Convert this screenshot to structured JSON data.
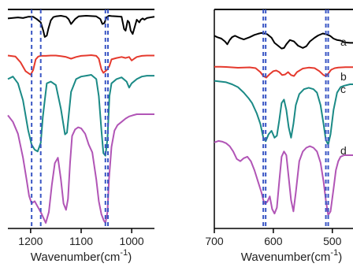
{
  "chart_data": [
    {
      "type": "line",
      "xlabel_text": "Wavenumber(cm",
      "xlabel_exp": "-1",
      "xlabel_close": ")",
      "x_reversed": true,
      "xlim": [
        1245,
        955
      ],
      "xticks": [
        1200,
        1100,
        1000
      ],
      "tick_labels": [
        "1200",
        "1100",
        "1000"
      ],
      "markers": [
        1198,
        1180,
        1052,
        1047
      ],
      "series": [
        {
          "color": "#000000",
          "x": [
            1245,
            1225,
            1215,
            1205,
            1195,
            1188,
            1180,
            1175,
            1172,
            1168,
            1165,
            1160,
            1155,
            1150,
            1140,
            1130,
            1125,
            1120,
            1112,
            1105,
            1098,
            1090,
            1080,
            1070,
            1062,
            1058,
            1054,
            1050,
            1045,
            1040,
            1030,
            1020,
            1015,
            1012,
            1008,
            1005,
            1002,
            998,
            990,
            985,
            982,
            978,
            975,
            970,
            960,
            955
          ],
          "y": [
            0.92,
            0.95,
            0.93,
            0.97,
            0.97,
            0.9,
            0.8,
            0.55,
            0.36,
            0.4,
            0.6,
            0.86,
            0.96,
            0.98,
            1.0,
            0.97,
            0.9,
            0.75,
            0.9,
            0.98,
            0.99,
            1.0,
            0.99,
            0.98,
            0.9,
            0.75,
            0.78,
            0.95,
            1.0,
            0.99,
            0.98,
            0.97,
            0.6,
            0.55,
            0.85,
            0.8,
            0.55,
            0.45,
            0.88,
            0.8,
            0.88,
            0.92,
            0.88,
            0.93,
            0.96,
            0.97
          ]
        },
        {
          "color": "#e53a2e",
          "x": [
            1245,
            1230,
            1220,
            1210,
            1200,
            1195,
            1190,
            1185,
            1180,
            1175,
            1170,
            1160,
            1150,
            1140,
            1130,
            1120,
            1110,
            1100,
            1090,
            1080,
            1070,
            1065,
            1060,
            1056,
            1052,
            1048,
            1044,
            1040,
            1030,
            1020,
            1012,
            1005,
            1000,
            995,
            990,
            980,
            970,
            960,
            955
          ],
          "y": [
            0.99,
            0.96,
            0.8,
            0.55,
            0.45,
            0.58,
            0.88,
            0.96,
            0.98,
            0.98,
            0.98,
            0.99,
            0.99,
            0.97,
            0.95,
            0.9,
            0.95,
            0.98,
            0.99,
            1.0,
            0.98,
            0.9,
            0.6,
            0.5,
            0.55,
            0.6,
            0.7,
            0.88,
            0.92,
            0.95,
            0.92,
            0.95,
            0.85,
            0.9,
            0.95,
            0.98,
            0.99,
            0.99,
            0.99
          ]
        },
        {
          "color": "#1b8a86",
          "x": [
            1245,
            1235,
            1225,
            1215,
            1205,
            1198,
            1192,
            1186,
            1180,
            1176,
            1172,
            1168,
            1160,
            1150,
            1140,
            1132,
            1128,
            1120,
            1110,
            1100,
            1090,
            1080,
            1070,
            1065,
            1060,
            1056,
            1052,
            1048,
            1044,
            1040,
            1030,
            1020,
            1010,
            1005,
            1000,
            990,
            980,
            970,
            960,
            955
          ],
          "y": [
            0.95,
            0.98,
            0.9,
            0.7,
            0.35,
            0.18,
            0.12,
            0.1,
            0.2,
            0.5,
            0.7,
            0.9,
            0.92,
            0.88,
            0.6,
            0.3,
            0.32,
            0.8,
            0.95,
            0.98,
            0.99,
            1.0,
            0.95,
            0.75,
            0.35,
            0.08,
            0.05,
            0.25,
            0.75,
            0.9,
            0.95,
            0.97,
            0.92,
            0.85,
            0.9,
            0.95,
            0.98,
            0.99,
            0.99,
            0.99
          ]
        },
        {
          "color": "#b155b6",
          "x": [
            1245,
            1235,
            1225,
            1215,
            1208,
            1203,
            1198,
            1192,
            1186,
            1180,
            1175,
            1170,
            1164,
            1158,
            1152,
            1146,
            1140,
            1135,
            1130,
            1126,
            1122,
            1118,
            1112,
            1106,
            1100,
            1092,
            1085,
            1078,
            1070,
            1065,
            1060,
            1055,
            1052,
            1048,
            1045,
            1040,
            1034,
            1028,
            1020,
            1012,
            1005,
            998,
            990,
            980,
            970,
            960,
            955
          ],
          "y": [
            0.99,
            0.93,
            0.82,
            0.6,
            0.4,
            0.25,
            0.18,
            0.2,
            0.15,
            0.1,
            0.05,
            0.0,
            0.1,
            0.35,
            0.55,
            0.6,
            0.4,
            0.18,
            0.12,
            0.22,
            0.55,
            0.8,
            0.86,
            0.88,
            0.87,
            0.82,
            0.72,
            0.65,
            0.4,
            0.2,
            0.08,
            0.02,
            0.0,
            0.1,
            0.4,
            0.7,
            0.85,
            0.9,
            0.93,
            0.96,
            0.98,
            0.99,
            1.0,
            1.0,
            1.0,
            1.0,
            1.0
          ]
        }
      ]
    },
    {
      "type": "line",
      "xlabel_text": "Wavenumber(cm",
      "xlabel_exp": "-1",
      "xlabel_close": ")",
      "x_reversed": true,
      "xlim": [
        700,
        465
      ],
      "xticks": [
        700,
        600,
        500
      ],
      "tick_labels": [
        "700",
        "600",
        "500"
      ],
      "markers": [
        617,
        613,
        511,
        507
      ],
      "series": [
        {
          "color": "#000000",
          "label": "a",
          "x": [
            700,
            695,
            688,
            682,
            678,
            674,
            670,
            665,
            658,
            650,
            640,
            632,
            626,
            620,
            615,
            610,
            603,
            598,
            592,
            586,
            582,
            578,
            572,
            565,
            558,
            550,
            544,
            538,
            530,
            524,
            516,
            510,
            504,
            498,
            492,
            486,
            480,
            470,
            465
          ],
          "y": [
            0.85,
            0.8,
            0.75,
            0.65,
            0.55,
            0.7,
            0.8,
            0.85,
            0.78,
            0.72,
            0.8,
            0.88,
            0.92,
            0.95,
            0.93,
            0.9,
            0.78,
            0.6,
            0.5,
            0.4,
            0.42,
            0.55,
            0.7,
            0.65,
            0.5,
            0.42,
            0.48,
            0.65,
            0.78,
            0.86,
            0.93,
            0.9,
            0.85,
            0.75,
            0.7,
            0.68,
            0.62,
            0.6,
            0.6
          ]
        },
        {
          "color": "#e53a2e",
          "label": "b",
          "x": [
            700,
            690,
            680,
            670,
            660,
            650,
            640,
            630,
            622,
            617,
            612,
            606,
            600,
            595,
            590,
            585,
            580,
            575,
            570,
            565,
            560,
            550,
            540,
            530,
            522,
            515,
            511,
            507,
            502,
            496,
            490,
            484,
            478,
            470,
            465
          ],
          "y": [
            0.97,
            0.97,
            0.96,
            0.94,
            0.92,
            0.93,
            0.94,
            0.9,
            0.7,
            0.5,
            0.42,
            0.6,
            0.75,
            0.78,
            0.7,
            0.55,
            0.58,
            0.7,
            0.55,
            0.5,
            0.7,
            0.88,
            0.93,
            0.9,
            0.75,
            0.55,
            0.5,
            0.62,
            0.82,
            0.9,
            0.93,
            0.94,
            0.95,
            0.95,
            0.95
          ]
        },
        {
          "color": "#1b8a86",
          "label": "c",
          "x": [
            700,
            690,
            680,
            670,
            660,
            650,
            642,
            636,
            628,
            622,
            617,
            613,
            608,
            603,
            598,
            594,
            590,
            586,
            582,
            578,
            574,
            570,
            566,
            562,
            556,
            548,
            540,
            532,
            526,
            520,
            515,
            511,
            507,
            503,
            498,
            492,
            486,
            480,
            470,
            465
          ],
          "y": [
            0.97,
            0.96,
            0.95,
            0.92,
            0.88,
            0.8,
            0.72,
            0.65,
            0.5,
            0.35,
            0.15,
            0.1,
            0.2,
            0.25,
            0.15,
            0.18,
            0.4,
            0.65,
            0.7,
            0.55,
            0.3,
            0.15,
            0.35,
            0.62,
            0.78,
            0.85,
            0.87,
            0.85,
            0.8,
            0.62,
            0.35,
            0.12,
            0.05,
            0.2,
            0.55,
            0.8,
            0.88,
            0.9,
            0.92,
            0.92
          ]
        },
        {
          "color": "#b155b6",
          "label": "d",
          "x": [
            700,
            693,
            686,
            680,
            674,
            668,
            662,
            656,
            650,
            644,
            638,
            632,
            626,
            620,
            617,
            614,
            610,
            606,
            602,
            598,
            594,
            590,
            586,
            582,
            578,
            574,
            570,
            566,
            562,
            556,
            550,
            544,
            538,
            532,
            526,
            520,
            515,
            511,
            507,
            503,
            498,
            494,
            490,
            486,
            480,
            470,
            465
          ],
          "y": [
            0.97,
            0.99,
            0.98,
            0.96,
            0.92,
            0.85,
            0.75,
            0.72,
            0.76,
            0.78,
            0.72,
            0.6,
            0.45,
            0.3,
            0.2,
            0.15,
            0.18,
            0.25,
            0.08,
            0.02,
            0.1,
            0.45,
            0.78,
            0.85,
            0.8,
            0.5,
            0.2,
            0.05,
            0.3,
            0.72,
            0.85,
            0.9,
            0.92,
            0.9,
            0.85,
            0.7,
            0.45,
            0.2,
            0.0,
            0.05,
            0.35,
            0.6,
            0.72,
            0.78,
            0.8,
            0.8,
            0.8
          ]
        }
      ]
    }
  ]
}
